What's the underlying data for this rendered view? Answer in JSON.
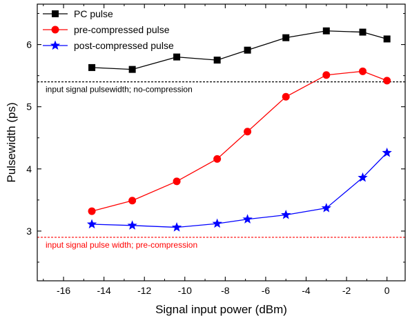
{
  "chart_data": {
    "type": "line",
    "xlabel": "Signal input power (dBm)",
    "ylabel": "Pulsewidth (ps)",
    "xlim": [
      -17.3,
      0.9
    ],
    "ylim": [
      2.2,
      6.65
    ],
    "x_ticks": [
      -16,
      -14,
      -12,
      -10,
      -8,
      -6,
      -4,
      -2,
      0
    ],
    "y_ticks": [
      3,
      4,
      5,
      6
    ],
    "series": [
      {
        "name": "PC pulse",
        "color": "#000000",
        "marker": "square",
        "x": [
          -14.6,
          -12.6,
          -10.4,
          -8.4,
          -6.9,
          -5.0,
          -3.0,
          -1.2,
          0.0
        ],
        "y": [
          5.63,
          5.6,
          5.8,
          5.75,
          5.91,
          6.11,
          6.22,
          6.2,
          6.09
        ]
      },
      {
        "name": "pre-compressed pulse",
        "color": "#ff0000",
        "marker": "circle",
        "x": [
          -14.6,
          -12.6,
          -10.4,
          -8.4,
          -6.9,
          -5.0,
          -3.0,
          -1.2,
          0.0
        ],
        "y": [
          3.32,
          3.49,
          3.8,
          4.16,
          4.6,
          5.16,
          5.51,
          5.57,
          5.42
        ]
      },
      {
        "name": "post-compressed pulse",
        "color": "#0000ff",
        "marker": "star",
        "x": [
          -14.6,
          -12.6,
          -10.4,
          -8.4,
          -6.9,
          -5.0,
          -3.0,
          -1.2,
          0.0
        ],
        "y": [
          3.11,
          3.09,
          3.06,
          3.12,
          3.19,
          3.26,
          3.37,
          3.86,
          4.26
        ]
      }
    ],
    "reference_lines": [
      {
        "y": 5.4,
        "label": "input signal pulsewidth; no-compression",
        "color": "#000000"
      },
      {
        "y": 2.9,
        "label": "input signal pulse width; pre-compression",
        "color": "#ff0000"
      }
    ],
    "legend_position": "top-left",
    "grid": false
  }
}
